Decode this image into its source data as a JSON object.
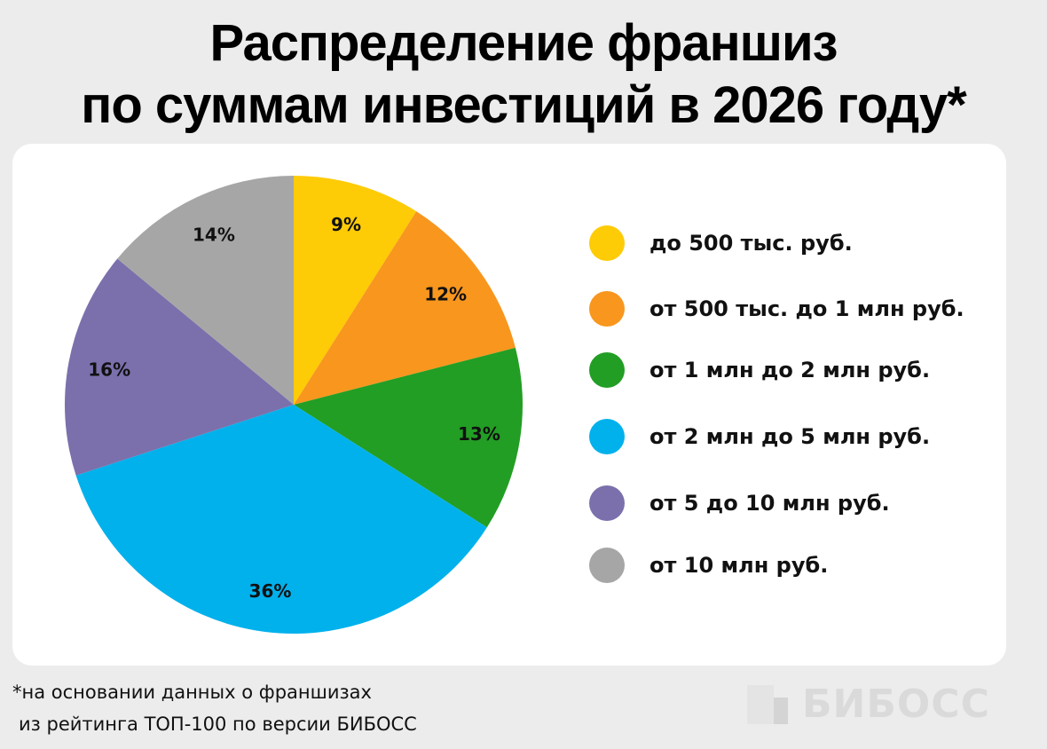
{
  "title": {
    "line1": "Распределение франшиз",
    "line2": "по суммам инвестиций в 2026 году*"
  },
  "chart_data": {
    "type": "pie",
    "title": "Распределение франшиз по суммам инвестиций в 2026 году*",
    "categories": [
      "до 500 тыс. руб.",
      "от 500 тыс. до 1 млн руб.",
      "от 1 млн до 2 млн руб.",
      "от 2 млн до 5 млн руб.",
      "от 5 до 10 млн руб.",
      "от 10 млн руб."
    ],
    "values": [
      9,
      12,
      13,
      36,
      16,
      14
    ],
    "labels": [
      "9%",
      "12%",
      "13%",
      "36%",
      "16%",
      "14%"
    ],
    "colors": [
      "#fecb07",
      "#f8961e",
      "#229e24",
      "#00b1ec",
      "#7b70ac",
      "#a6a6a6"
    ],
    "legend_position": "right",
    "start_angle": "top, clockwise"
  },
  "footnote": {
    "line1": "*на основании данных о франшизах",
    "line2": "из рейтинга ТОП-100 по версии БИБОСС"
  },
  "brand": {
    "name": "БИБОСС",
    "icon": "bibuss-logo-mark",
    "color": "#dadada"
  }
}
